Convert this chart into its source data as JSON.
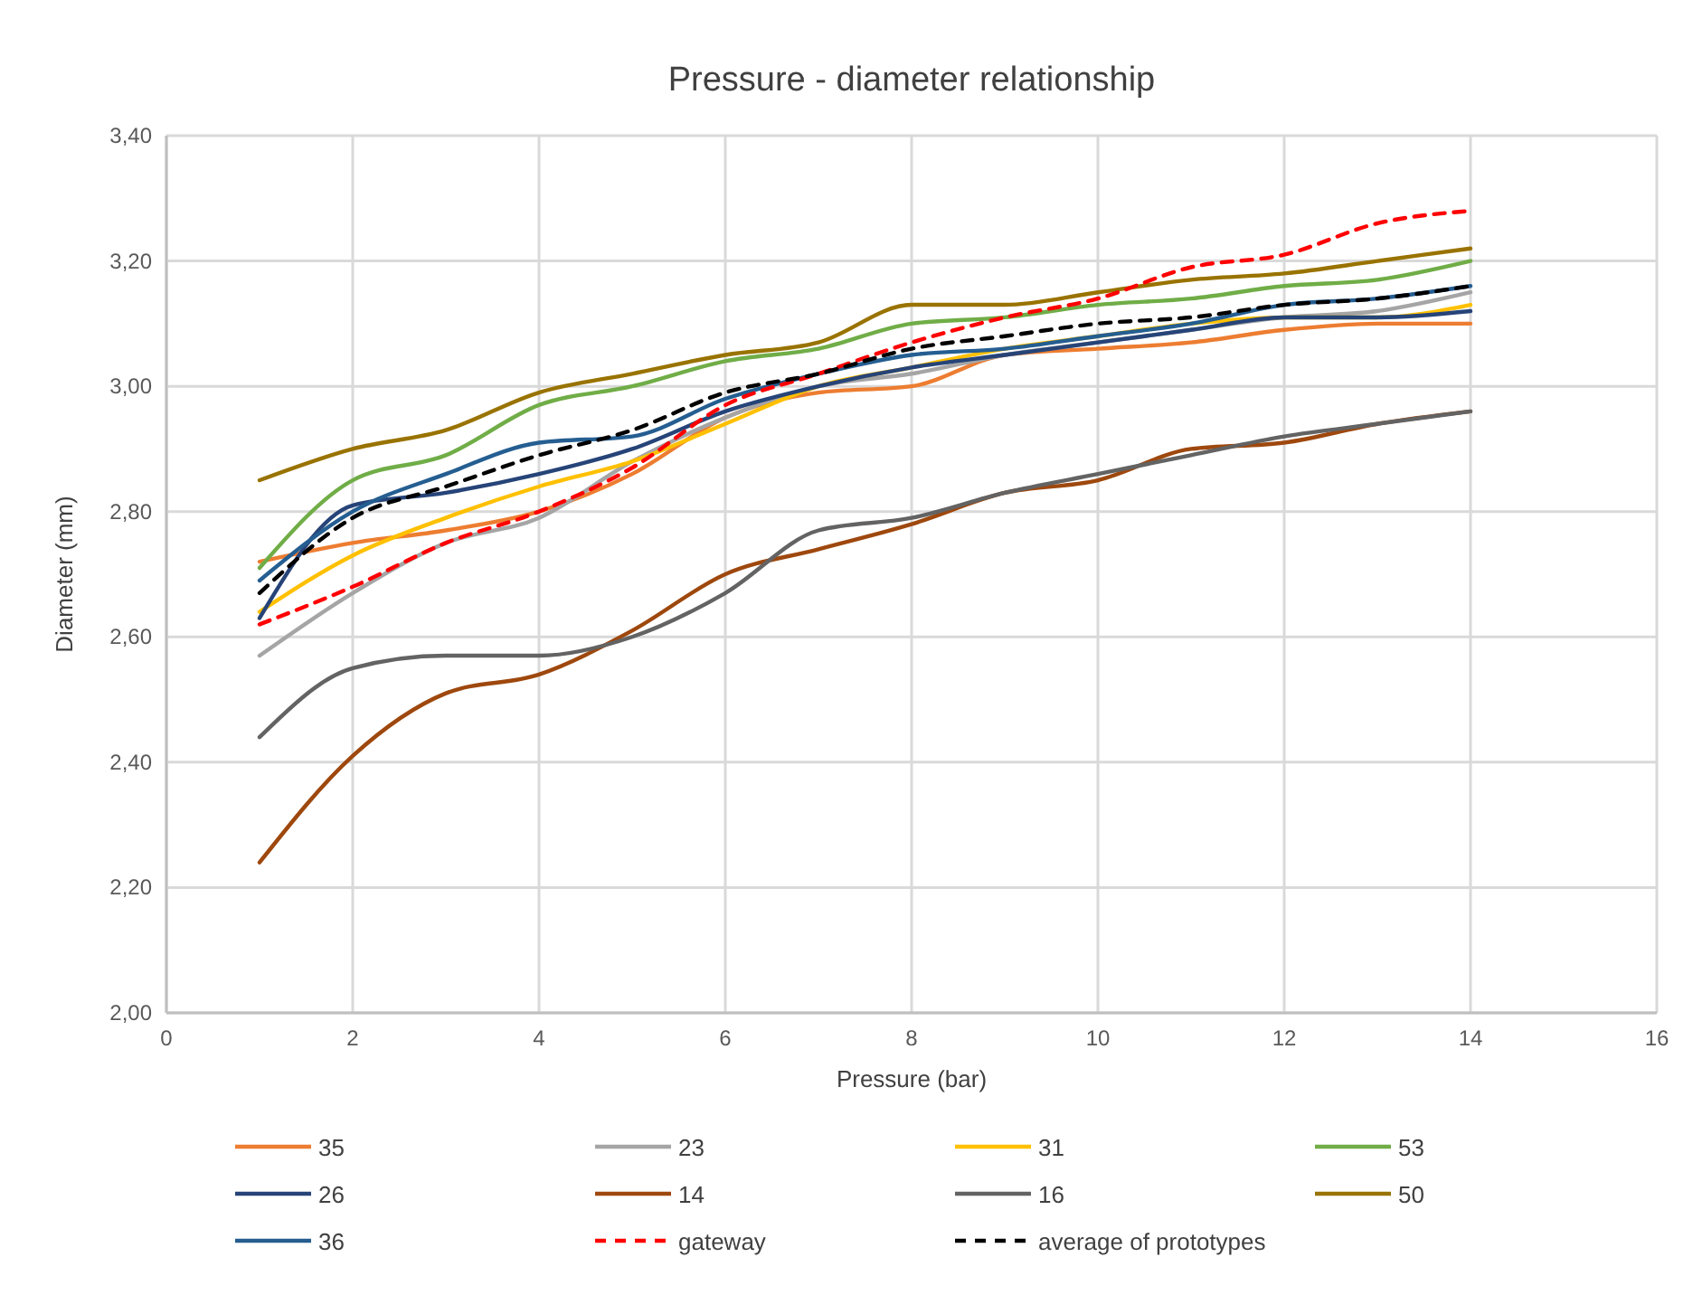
{
  "chart_data": {
    "type": "line",
    "title": "Pressure - diameter relationship",
    "xlabel": "Pressure (bar)",
    "ylabel": "Diameter (mm)",
    "x": [
      1,
      2,
      3,
      4,
      5,
      6,
      7,
      8,
      9,
      10,
      11,
      12,
      13,
      14
    ],
    "xlim": [
      0,
      16
    ],
    "xticks": [
      0,
      2,
      4,
      6,
      8,
      10,
      12,
      14,
      16
    ],
    "ylim": [
      2,
      3.4
    ],
    "yticks": [
      {
        "value": 2,
        "label": "2,00"
      },
      {
        "value": 2.2,
        "label": "2,20"
      },
      {
        "value": 2.4,
        "label": "2,40"
      },
      {
        "value": 2.6,
        "label": "2,60"
      },
      {
        "value": 2.8,
        "label": "2,80"
      },
      {
        "value": 3,
        "label": "3,00"
      },
      {
        "value": 3.2,
        "label": "3,20"
      },
      {
        "value": 3.4,
        "label": "3,40"
      }
    ],
    "grid": true,
    "legend": "bottom",
    "marker": "none",
    "series": [
      {
        "name": "35",
        "color": "#ed7d31",
        "values": [
          2.72,
          2.75,
          2.77,
          2.8,
          2.86,
          2.95,
          2.99,
          3.0,
          3.05,
          3.06,
          3.07,
          3.09,
          3.1,
          3.1
        ]
      },
      {
        "name": "23",
        "color": "#a5a5a5",
        "values": [
          2.57,
          2.67,
          2.75,
          2.79,
          2.88,
          2.95,
          3.0,
          3.02,
          3.05,
          3.07,
          3.09,
          3.11,
          3.12,
          3.15
        ]
      },
      {
        "name": "31",
        "color": "#ffc000",
        "values": [
          2.64,
          2.73,
          2.79,
          2.84,
          2.88,
          2.94,
          3.0,
          3.03,
          3.06,
          3.08,
          3.1,
          3.11,
          3.11,
          3.13
        ]
      },
      {
        "name": "53",
        "color": "#70ad47",
        "values": [
          2.71,
          2.85,
          2.89,
          2.97,
          3.0,
          3.04,
          3.06,
          3.1,
          3.11,
          3.13,
          3.14,
          3.16,
          3.17,
          3.2
        ]
      },
      {
        "name": "26",
        "color": "#264478",
        "values": [
          2.63,
          2.81,
          2.83,
          2.86,
          2.9,
          2.96,
          3.0,
          3.03,
          3.05,
          3.07,
          3.09,
          3.11,
          3.11,
          3.12
        ]
      },
      {
        "name": "14",
        "color": "#9e480e",
        "values": [
          2.24,
          2.41,
          2.51,
          2.54,
          2.61,
          2.7,
          2.74,
          2.78,
          2.83,
          2.85,
          2.9,
          2.91,
          2.94,
          2.96
        ]
      },
      {
        "name": "16",
        "color": "#636363",
        "values": [
          2.44,
          2.55,
          2.57,
          2.57,
          2.6,
          2.67,
          2.77,
          2.79,
          2.83,
          2.86,
          2.89,
          2.92,
          2.94,
          2.96
        ]
      },
      {
        "name": "50",
        "color": "#997300",
        "values": [
          2.85,
          2.9,
          2.93,
          2.99,
          3.02,
          3.05,
          3.07,
          3.13,
          3.13,
          3.15,
          3.17,
          3.18,
          3.2,
          3.22
        ]
      },
      {
        "name": "36",
        "color": "#255e91",
        "values": [
          2.69,
          2.8,
          2.86,
          2.91,
          2.92,
          2.98,
          3.02,
          3.05,
          3.06,
          3.08,
          3.1,
          3.13,
          3.14,
          3.16
        ]
      },
      {
        "name": "gateway",
        "color": "#ff0000",
        "line_style": "dashed",
        "values": [
          2.62,
          2.68,
          2.75,
          2.8,
          2.87,
          2.97,
          3.02,
          3.07,
          3.11,
          3.14,
          3.19,
          3.21,
          3.26,
          3.28
        ]
      },
      {
        "name": "average of prototypes",
        "color": "#000000",
        "line_style": "dashed",
        "values": [
          2.67,
          2.79,
          2.84,
          2.89,
          2.93,
          2.99,
          3.02,
          3.06,
          3.08,
          3.1,
          3.11,
          3.13,
          3.14,
          3.16
        ]
      }
    ]
  }
}
